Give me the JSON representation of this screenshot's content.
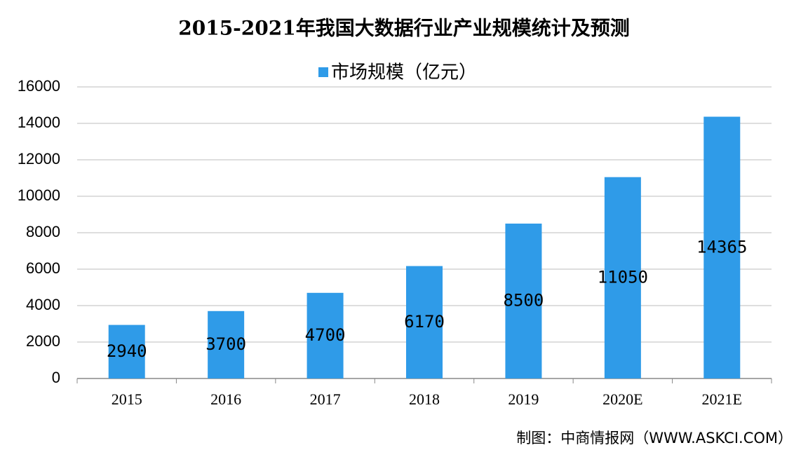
{
  "chart_data": {
    "type": "bar",
    "title": "2015-2021年我国大数据行业产业规模统计及预测",
    "categories": [
      "2015",
      "2016",
      "2017",
      "2018",
      "2019",
      "2020E",
      "2021E"
    ],
    "series": [
      {
        "name": "市场规模（亿元）",
        "color": "#2f9be8",
        "values": [
          2940,
          3700,
          4700,
          6170,
          8500,
          11050,
          14365
        ]
      }
    ],
    "ylim": [
      0,
      16000
    ],
    "yticks": [
      0,
      2000,
      4000,
      6000,
      8000,
      10000,
      12000,
      14000,
      16000
    ],
    "grid": true,
    "source": "制图：中商情报网（WWW.ASKCI.COM）"
  }
}
